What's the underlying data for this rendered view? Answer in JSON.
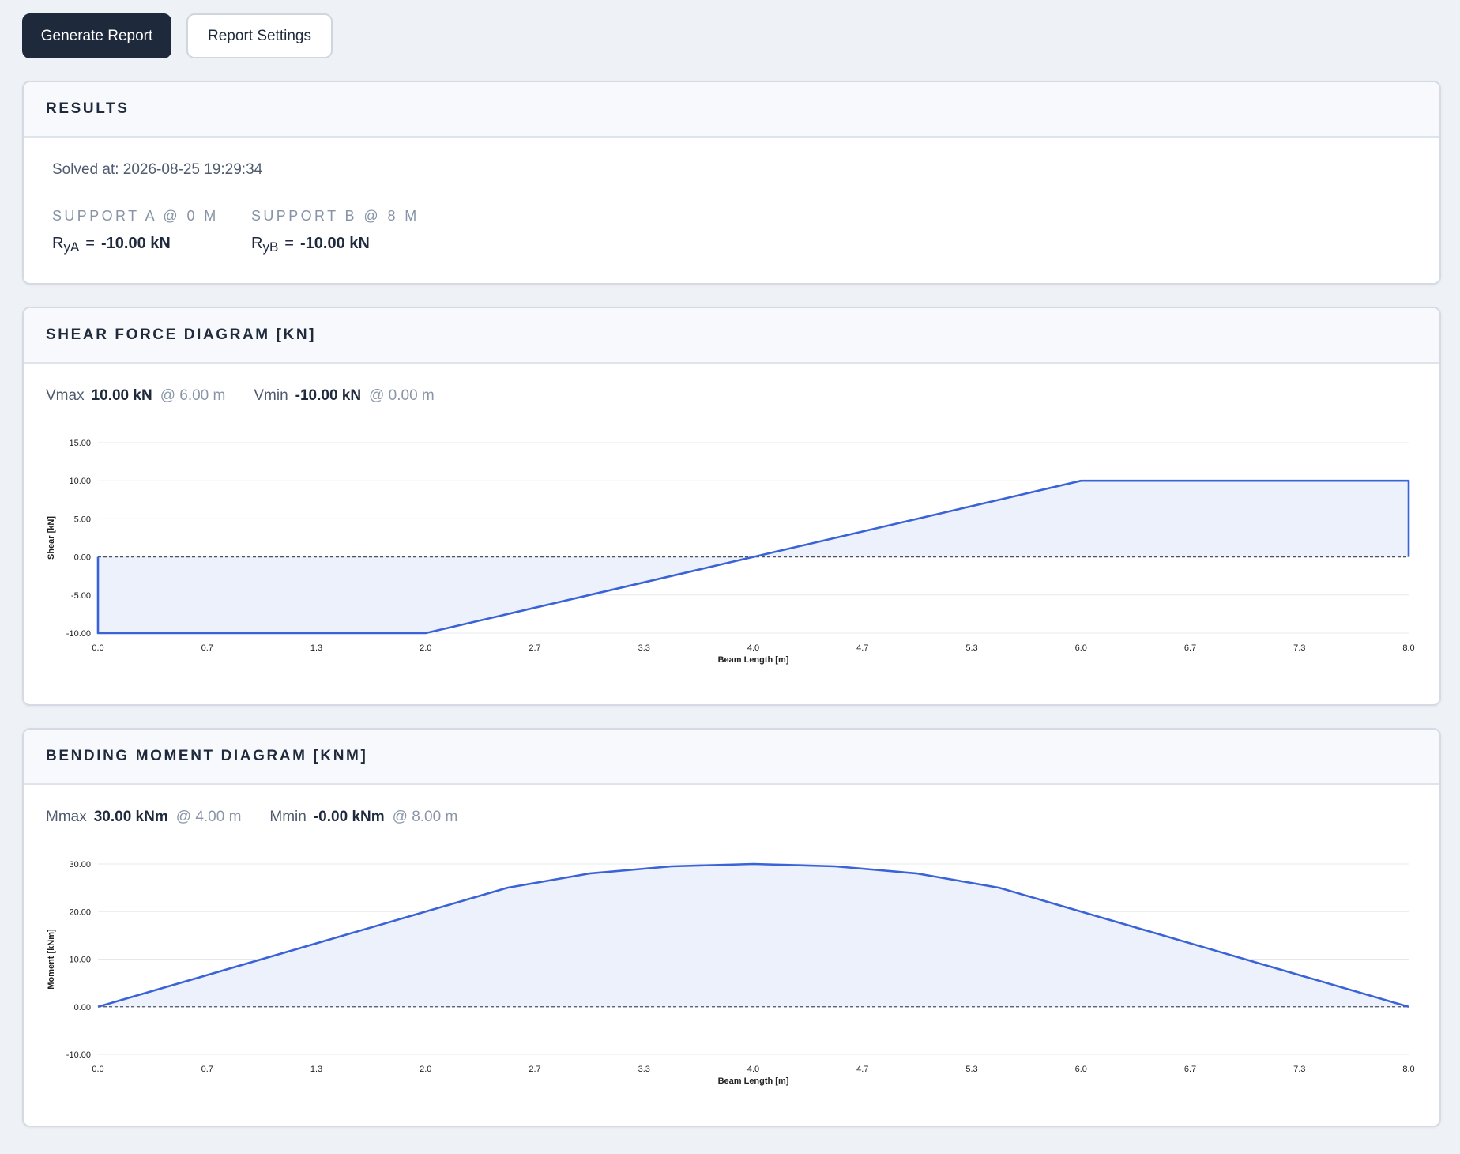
{
  "toolbar": {
    "generate_label": "Generate Report",
    "settings_label": "Report Settings"
  },
  "results": {
    "title": "RESULTS",
    "solved_at": "Solved at: 2026-08-25 19:29:34",
    "supports": [
      {
        "title": "SUPPORT A @ 0 M",
        "symbol": "R",
        "sub": "yA",
        "eq": "=",
        "value": "-10.00 kN"
      },
      {
        "title": "SUPPORT B @ 8 M",
        "symbol": "R",
        "sub": "yB",
        "eq": "=",
        "value": "-10.00 kN"
      }
    ]
  },
  "shear": {
    "title": "SHEAR FORCE DIAGRAM [KN]",
    "stats": [
      {
        "label": "Vmax",
        "value": "10.00 kN",
        "at": "@ 6.00 m"
      },
      {
        "label": "Vmin",
        "value": "-10.00 kN",
        "at": "@ 0.00 m"
      }
    ]
  },
  "moment": {
    "title": "BENDING MOMENT DIAGRAM [KNM]",
    "stats": [
      {
        "label": "Mmax",
        "value": "30.00 kNm",
        "at": "@ 4.00 m"
      },
      {
        "label": "Mmin",
        "value": "-0.00 kNm",
        "at": "@ 8.00 m"
      }
    ]
  },
  "colors": {
    "line": "#3b63d8",
    "fill": "#edf1fc",
    "grid": "#e6e8ec",
    "zero_line": "#4a5260"
  },
  "chart_data": [
    {
      "type": "area",
      "name": "shear",
      "xlabel": "Beam Length [m]",
      "ylabel": "Shear [kN]",
      "xlim": [
        0,
        8
      ],
      "ylim": [
        -10,
        15
      ],
      "x_ticks": [
        "0.0",
        "0.7",
        "1.3",
        "2.0",
        "2.7",
        "3.3",
        "4.0",
        "4.7",
        "5.3",
        "6.0",
        "6.7",
        "7.3",
        "8.0"
      ],
      "y_ticks": [
        "15.00",
        "10.00",
        "5.00",
        "0.00",
        "-5.00",
        "-10.00"
      ],
      "y_tick_values": [
        15,
        10,
        5,
        0,
        -5,
        -10
      ],
      "grid": true,
      "zero_line": "dashed",
      "x": [
        0,
        0,
        2,
        4,
        6,
        8,
        8
      ],
      "y": [
        0,
        -10,
        -10,
        0,
        10,
        10,
        0
      ]
    },
    {
      "type": "area",
      "name": "moment",
      "xlabel": "Beam Length [m]",
      "ylabel": "Moment [kNm]",
      "xlim": [
        0,
        8
      ],
      "ylim": [
        -10,
        30
      ],
      "x_ticks": [
        "0.0",
        "0.7",
        "1.3",
        "2.0",
        "2.7",
        "3.3",
        "4.0",
        "4.7",
        "5.3",
        "6.0",
        "6.7",
        "7.3",
        "8.0"
      ],
      "y_ticks": [
        "30.00",
        "20.00",
        "10.00",
        "0.00",
        "-10.00"
      ],
      "y_tick_values": [
        30,
        20,
        10,
        0,
        -10
      ],
      "grid": true,
      "zero_line": "dashed",
      "x": [
        0,
        2,
        2.5,
        3,
        3.5,
        4,
        4.5,
        5,
        5.5,
        6,
        8
      ],
      "y": [
        0,
        20,
        25,
        28,
        29.5,
        30,
        29.5,
        28,
        25,
        20,
        0
      ]
    }
  ]
}
